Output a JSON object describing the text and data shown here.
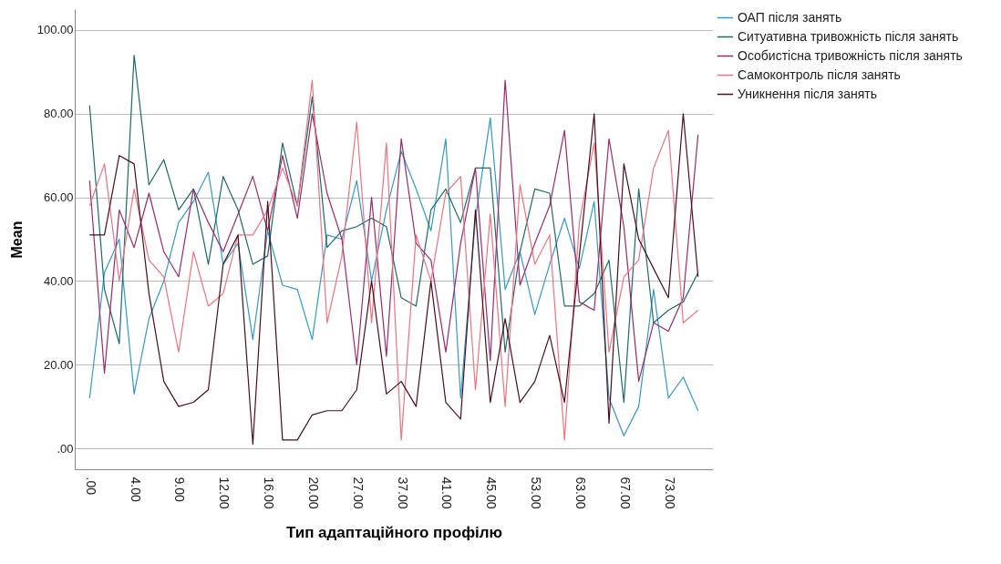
{
  "chart_data": {
    "type": "line",
    "xlabel": "Тип адаптаційного профілю",
    "ylabel": "Mean",
    "categories": [
      ".00",
      null,
      null,
      "4.00",
      null,
      null,
      "9.00",
      null,
      null,
      "12.00",
      null,
      null,
      "16.00",
      null,
      null,
      "20.00",
      null,
      null,
      "27.00",
      null,
      null,
      "37.00",
      null,
      null,
      "41.00",
      null,
      null,
      "45.00",
      null,
      null,
      "53.00",
      null,
      null,
      "63.00",
      null,
      null,
      "67.00",
      null,
      null,
      "73.00",
      null,
      null
    ],
    "series": [
      {
        "name": "ОАП після занять",
        "color": "#3399cc",
        "values": [
          12,
          42,
          50,
          13,
          31,
          40,
          54,
          59,
          66,
          44,
          49,
          26,
          52,
          39,
          38,
          26,
          51,
          50,
          64,
          40,
          57,
          71,
          62,
          52,
          74,
          12,
          55,
          79,
          38,
          47,
          32,
          44,
          55,
          43,
          59,
          12,
          3,
          10,
          38,
          12,
          17,
          9
        ]
      },
      {
        "name": "Ситуативна тривожність після занять",
        "color": "#1d6a6a",
        "values": [
          82,
          38,
          25,
          94,
          63,
          69,
          57,
          62,
          44,
          65,
          57,
          44,
          46,
          73,
          58,
          84,
          48,
          52,
          53,
          55,
          53,
          36,
          34,
          57,
          62,
          54,
          67,
          67,
          23,
          47,
          62,
          61,
          34,
          34,
          37,
          45,
          11,
          62,
          30,
          33,
          35,
          42
        ]
      },
      {
        "name": "Особистісна тривожність після занять",
        "color": "#9a2a6e",
        "values": [
          64,
          18,
          57,
          48,
          61,
          47,
          41,
          62,
          54,
          47,
          56,
          65,
          52,
          70,
          55,
          80,
          61,
          50,
          20,
          60,
          22,
          74,
          49,
          45,
          23,
          49,
          67,
          21,
          88,
          39,
          49,
          58,
          76,
          35,
          33,
          74,
          53,
          16,
          30,
          28,
          36,
          75
        ]
      },
      {
        "name": "Самоконтроль після занять",
        "color": "#f0727e",
        "values": [
          58,
          68,
          40,
          62,
          45,
          41,
          23,
          47,
          34,
          37,
          51,
          51,
          57,
          67,
          58,
          88,
          30,
          46,
          78,
          30,
          73,
          2,
          51,
          40,
          61,
          65,
          14,
          56,
          10,
          63,
          44,
          51,
          2,
          54,
          73,
          23,
          41,
          45,
          67,
          76,
          30,
          33
        ]
      },
      {
        "name": "Уникнення після занять",
        "color": "#4a0e1e",
        "values": [
          51,
          51,
          70,
          68,
          37,
          16,
          10,
          11,
          14,
          44,
          51,
          1,
          59,
          2,
          2,
          8,
          9,
          9,
          14,
          40,
          13,
          16,
          10,
          40,
          11,
          7,
          57,
          11,
          31,
          11,
          16,
          27,
          11,
          46,
          80,
          6,
          68,
          50,
          43,
          36,
          80,
          41
        ]
      }
    ],
    "ylim": [
      -5,
      105
    ],
    "yticks": [
      {
        "value": 0,
        "label": ".00"
      },
      {
        "value": 20,
        "label": "20.00"
      },
      {
        "value": 40,
        "label": "40.00"
      },
      {
        "value": 60,
        "label": "60.00"
      },
      {
        "value": 80,
        "label": "80.00"
      },
      {
        "value": 100,
        "label": "100.00"
      }
    ],
    "grid": "y",
    "legend": "top right",
    "marker": "none",
    "line_style": "solid"
  }
}
